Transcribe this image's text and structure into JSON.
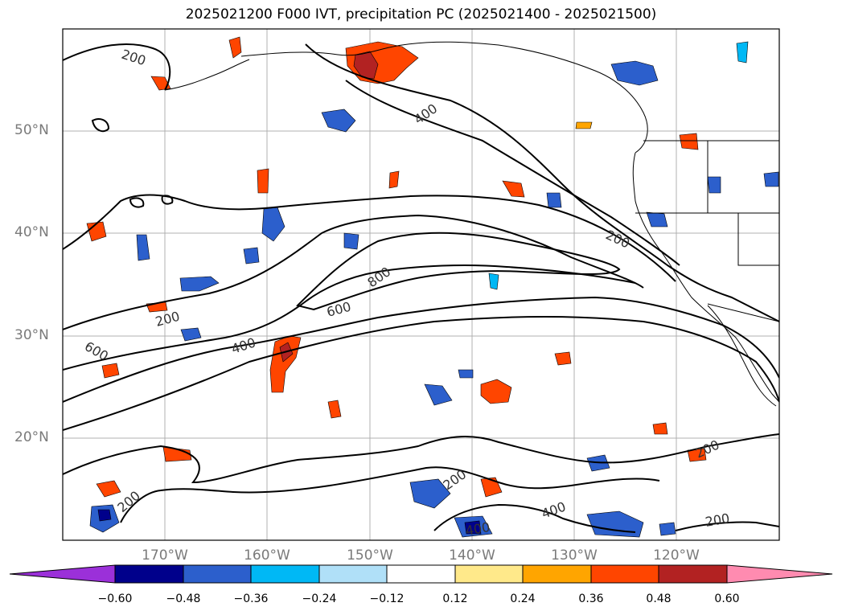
{
  "title": "2025021200 F000 IVT, precipitation PC (2025021400 - 2025021500)",
  "lat_labels": [
    "50°N",
    "40°N",
    "30°N",
    "20°N"
  ],
  "lon_labels": [
    "170°W",
    "160°W",
    "150°W",
    "140°W",
    "130°W",
    "120°W"
  ],
  "contour_labels": [
    "200",
    "400",
    "600",
    "800"
  ],
  "colorbar": {
    "ticks": [
      "−0.60",
      "−0.48",
      "−0.36",
      "−0.24",
      "−0.12",
      "0.12",
      "0.24",
      "0.36",
      "0.48",
      "0.60"
    ],
    "colors": {
      "below": "#9b30d9",
      "neg_060_048": "#00008b",
      "neg_048_036": "#2c5fcc",
      "neg_036_024": "#00b8f5",
      "neg_024_012": "#b0e0f8",
      "neutral": "#ffffff",
      "pos_012_024": "#ffe98a",
      "pos_024_036": "#ffa500",
      "pos_036_048": "#ff4500",
      "pos_048_060": "#b22222",
      "above": "#ff8bb0"
    }
  }
}
